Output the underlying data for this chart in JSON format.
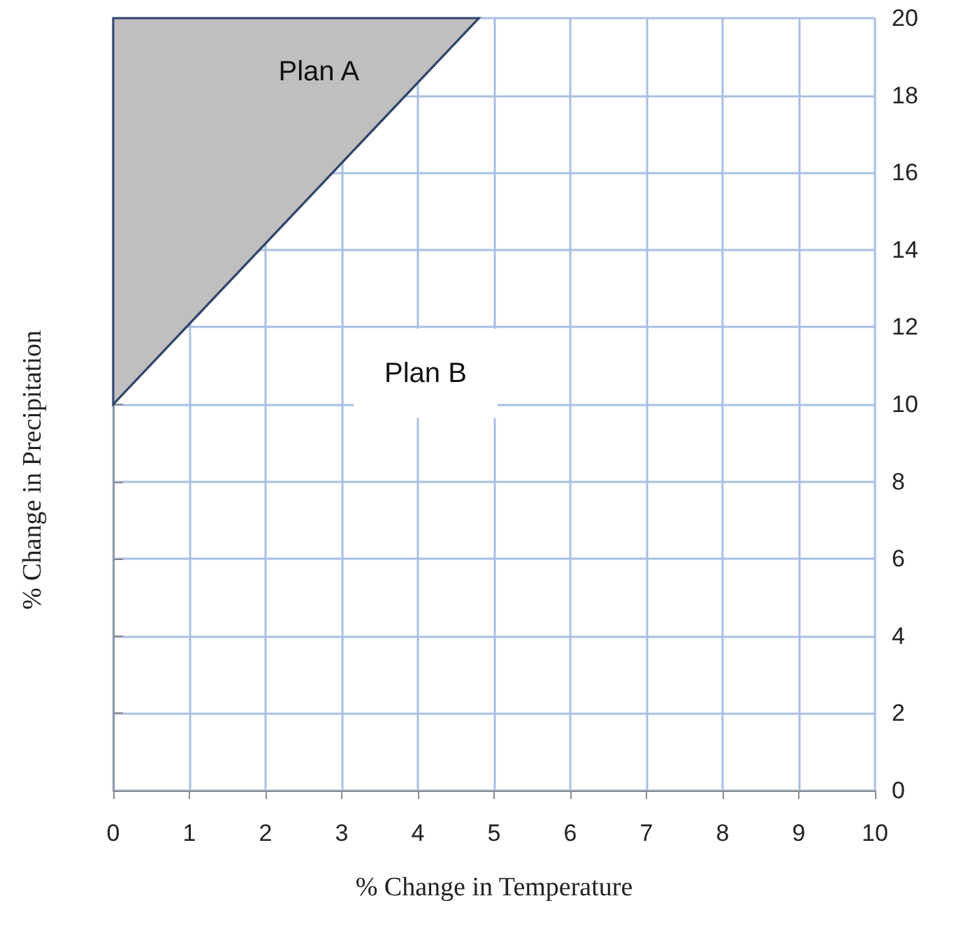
{
  "chart_data": {
    "type": "line",
    "xlabel": "% Change in Temperature",
    "ylabel": "% Change in Precipitation",
    "xlim": [
      0,
      10
    ],
    "xticks": [
      0,
      1,
      2,
      3,
      4,
      5,
      6,
      7,
      8,
      9,
      10
    ],
    "ylim": [
      0,
      20
    ],
    "yticks": [
      0,
      2,
      4,
      6,
      8,
      10,
      12,
      14,
      16,
      18,
      20
    ],
    "grid": true,
    "marker": "none",
    "series": [
      {
        "color": "#33466e",
        "x": [
          0,
          4.8
        ],
        "values": [
          10,
          20
        ],
        "lower": [
          10,
          20
        ],
        "upper": [
          20,
          20
        ]
      }
    ],
    "annotations": [
      "Plan A",
      "Plan B"
    ]
  }
}
